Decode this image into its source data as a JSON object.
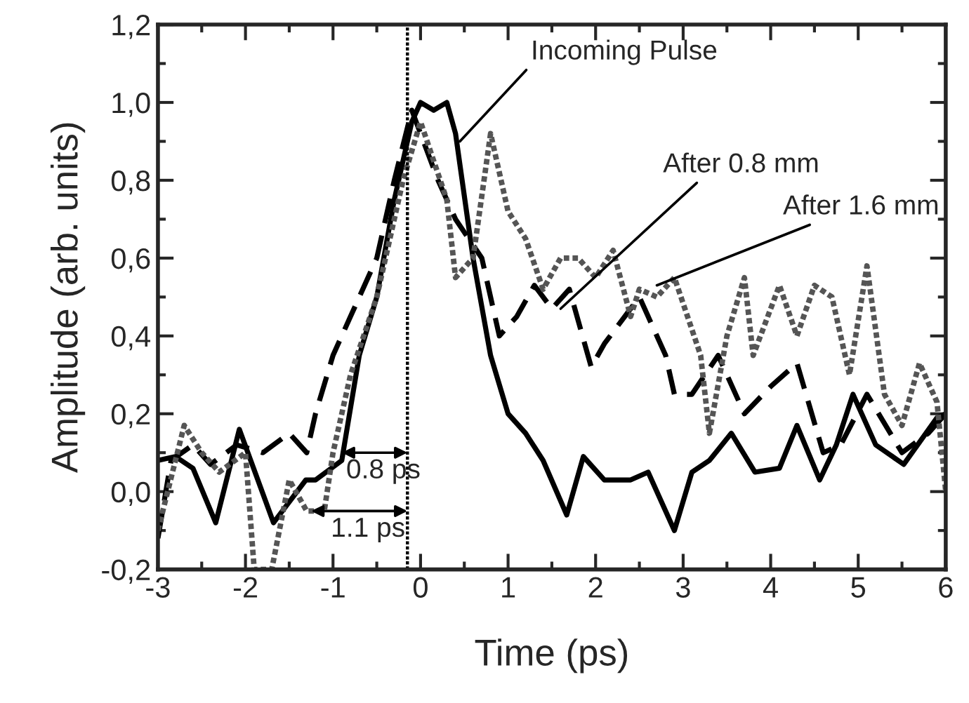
{
  "chart_data": {
    "type": "line",
    "xlabel": "Time (ps)",
    "ylabel": "Amplitude (arb. units)",
    "xlim": [
      -3,
      6
    ],
    "ylim": [
      -0.2,
      1.2
    ],
    "xticks": [
      -3,
      -2,
      -1,
      0,
      1,
      2,
      3,
      4,
      5,
      6
    ],
    "yticks": [
      {
        "value": -0.2,
        "label": "-0,2"
      },
      {
        "value": 0,
        "label": "0,0"
      },
      {
        "value": 0.2,
        "label": "0,2"
      },
      {
        "value": 0.4,
        "label": "0,4"
      },
      {
        "value": 0.6,
        "label": "0,6"
      },
      {
        "value": 0.8,
        "label": "0,8"
      },
      {
        "value": 1.0,
        "label": "1,0"
      },
      {
        "value": 1.2,
        "label": "1,2"
      }
    ],
    "grid": false,
    "legend": false,
    "marker": "none",
    "series": [
      {
        "color": "#000000",
        "line_style": "solid",
        "x": [
          -3,
          -2.8,
          -2.6,
          -2.34,
          -2.07,
          -1.68,
          -1.31,
          -1.2,
          -0.9,
          -0.7,
          -0.5,
          -0.3,
          -0.1,
          0,
          0.15,
          0.3,
          0.4,
          0.6,
          0.8,
          1.0,
          1.2,
          1.4,
          1.67,
          1.86,
          2.1,
          2.4,
          2.6,
          2.9,
          3.1,
          3.3,
          3.55,
          3.82,
          4.1,
          4.3,
          4.56,
          4.75,
          4.94,
          5.2,
          5.52,
          5.9,
          6.0
        ],
        "values": [
          0.08,
          0.09,
          0.06,
          -0.08,
          0.16,
          -0.08,
          0.03,
          0.03,
          0.08,
          0.35,
          0.5,
          0.75,
          0.95,
          1.0,
          0.98,
          1.0,
          0.92,
          0.6,
          0.35,
          0.2,
          0.15,
          0.08,
          -0.06,
          0.09,
          0.03,
          0.03,
          0.05,
          -0.1,
          0.05,
          0.08,
          0.15,
          0.05,
          0.06,
          0.17,
          0.03,
          0.12,
          0.25,
          0.12,
          0.07,
          0.19,
          0.2
        ]
      },
      {
        "color": "#000000",
        "line_style": "dashed",
        "x": [
          -3,
          -2.85,
          -2.6,
          -2.4,
          -2.1,
          -1.8,
          -1.5,
          -1.3,
          -1.2,
          -1.0,
          -0.8,
          -0.5,
          -0.3,
          -0.1,
          0.2,
          0.4,
          0.7,
          0.9,
          1.1,
          1.3,
          1.5,
          1.7,
          1.95,
          2.1,
          2.5,
          2.6,
          2.8,
          2.9,
          3.1,
          3.4,
          3.7,
          4.0,
          4.3,
          4.6,
          4.8,
          5.1,
          5.5,
          5.8,
          6.0
        ],
        "values": [
          -0.12,
          0.08,
          0.12,
          0.07,
          0.12,
          0.1,
          0.15,
          0.1,
          0.2,
          0.35,
          0.45,
          0.6,
          0.8,
          0.98,
          0.8,
          0.7,
          0.6,
          0.4,
          0.45,
          0.53,
          0.47,
          0.52,
          0.32,
          0.38,
          0.5,
          0.45,
          0.35,
          0.25,
          0.25,
          0.35,
          0.2,
          0.27,
          0.33,
          0.1,
          0.12,
          0.25,
          0.1,
          0.15,
          0.2
        ]
      },
      {
        "color": "#555555",
        "line_style": "dotted",
        "x": [
          -3,
          -2.7,
          -2.5,
          -2.3,
          -2.0,
          -1.9,
          -1.7,
          -1.5,
          -1.3,
          -1.1,
          -1.0,
          -0.8,
          -0.5,
          -0.2,
          0,
          0.3,
          0.4,
          0.6,
          0.8,
          1.0,
          1.2,
          1.4,
          1.6,
          1.8,
          2.0,
          2.2,
          2.4,
          2.5,
          2.7,
          2.9,
          3.2,
          3.3,
          3.5,
          3.7,
          3.8,
          4.1,
          4.3,
          4.5,
          4.7,
          4.9,
          5.1,
          5.3,
          5.5,
          5.7,
          5.9,
          6.0
        ],
        "values": [
          -0.1,
          0.17,
          0.1,
          0.05,
          0.1,
          -0.2,
          -0.2,
          0.03,
          -0.05,
          -0.05,
          0.1,
          0.3,
          0.5,
          0.8,
          0.95,
          0.75,
          0.55,
          0.6,
          0.92,
          0.72,
          0.65,
          0.52,
          0.6,
          0.6,
          0.55,
          0.62,
          0.45,
          0.52,
          0.5,
          0.55,
          0.35,
          0.15,
          0.4,
          0.55,
          0.35,
          0.53,
          0.4,
          0.53,
          0.5,
          0.3,
          0.58,
          0.25,
          0.17,
          0.33,
          0.23,
          0.0
        ]
      }
    ],
    "ref_lines": [
      {
        "axis": "x",
        "value": -0.15,
        "line_style": "dotted",
        "color": "#000000"
      }
    ],
    "annotations": [
      {
        "text": "Incoming Pulse",
        "x": 0.45,
        "y": 0.9
      },
      {
        "text": "After 0.8 mm",
        "x": 1.6,
        "y": 0.47
      },
      {
        "text": "After 1.6 mm",
        "x": 2.7,
        "y": 0.53
      },
      {
        "text": "0.8 ps",
        "x": -0.9,
        "y": 0.1
      },
      {
        "text": "1.1 ps",
        "x": -1.25,
        "y": -0.05
      }
    ]
  }
}
